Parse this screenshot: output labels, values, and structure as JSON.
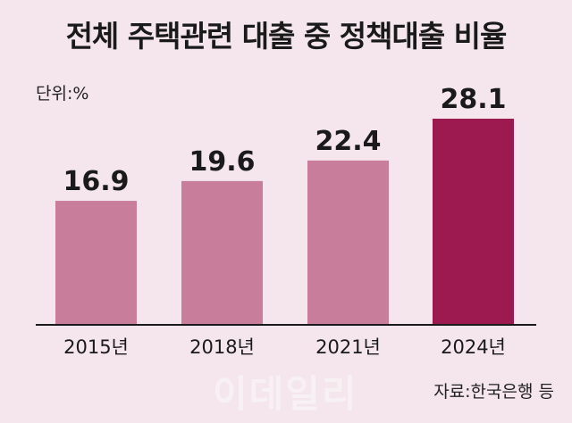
{
  "chart_data": {
    "type": "bar",
    "title": "전체 주택관련 대출 중 정책대출 비율",
    "unit_label": "단위:%",
    "categories": [
      "2015년",
      "2018년",
      "2021년",
      "2024년"
    ],
    "values": [
      16.9,
      19.6,
      22.4,
      28.1
    ],
    "value_labels": [
      "16.9",
      "19.6",
      "22.4",
      "28.1"
    ],
    "ylim": [
      0,
      28.1
    ],
    "grid": false,
    "colors": {
      "bar": "#c87d9b",
      "highlight": "#9c1a4f",
      "background": "#f4e6ec",
      "baseline": "#1a1a1a"
    },
    "highlight_index": 3
  },
  "source": "자료:한국은행 등",
  "watermark": "이데일리"
}
